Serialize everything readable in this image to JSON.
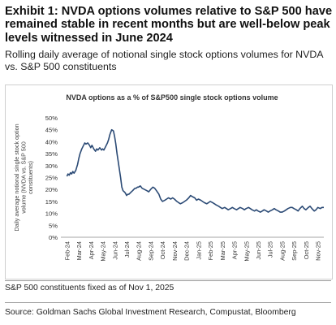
{
  "header": {
    "title": "Exhibit 1: NVDA options volumes relative to S&P 500 have remained stable in recent months but are well-below peak levels witnessed in June 2024",
    "subtitle": "Rolling daily average of notional single stock options volumes for NVDA vs. S&P 500 constituents"
  },
  "chart_data": {
    "type": "line",
    "title": "NVDA options as a % of S&P500 single stock options volume",
    "ylabel": "Daily average notional single stock option volume (NVDA vs. S&P 500 constituents)",
    "ylim": [
      0,
      50
    ],
    "y_ticks": [
      "0%",
      "5%",
      "10%",
      "15%",
      "20%",
      "25%",
      "30%",
      "35%",
      "40%",
      "45%",
      "50%"
    ],
    "x_ticks": [
      "Feb-24",
      "Mar-24",
      "Apr-24",
      "May-24",
      "Jun-24",
      "Jul-24",
      "Aug-24",
      "Sep-24",
      "Oct-24",
      "Nov-24",
      "Dec-24",
      "Jan-25",
      "Feb-25",
      "Mar-25",
      "Apr-25",
      "May-25",
      "Jun-25",
      "Jul-25",
      "Aug-25",
      "Sep-25",
      "Oct-25",
      "Nov-25"
    ],
    "grid": false,
    "line_color": "#2b4a75",
    "x": [
      0,
      0.1,
      0.2,
      0.3,
      0.4,
      0.5,
      0.6,
      0.75,
      0.9,
      1.0,
      1.1,
      1.25,
      1.4,
      1.5,
      1.6,
      1.75,
      1.9,
      2.0,
      2.1,
      2.25,
      2.4,
      2.5,
      2.6,
      2.75,
      2.9,
      3.0,
      3.1,
      3.25,
      3.4,
      3.5,
      3.6,
      3.75,
      3.9,
      4.0,
      4.1,
      4.2,
      4.35,
      4.5,
      4.6,
      4.7,
      4.8,
      4.9,
      5.0,
      5.1,
      5.2,
      5.3,
      5.4,
      5.5,
      5.6,
      5.7,
      5.8,
      5.9,
      6.0,
      6.15,
      6.3,
      6.5,
      6.7,
      6.85,
      7.0,
      7.2,
      7.35,
      7.5,
      7.7,
      7.85,
      8.0,
      8.2,
      8.35,
      8.5,
      8.7,
      8.85,
      9.0,
      9.2,
      9.35,
      9.5,
      9.7,
      9.85,
      10.0,
      10.2,
      10.35,
      10.5,
      10.7,
      10.85,
      11.0,
      11.2,
      11.35,
      11.5,
      11.7,
      11.85,
      12.0,
      12.2,
      12.35,
      12.5,
      12.7,
      12.85,
      13.0,
      13.2,
      13.35,
      13.5,
      13.7,
      13.85,
      14.0,
      14.2,
      14.35,
      14.5,
      14.7,
      14.85,
      15.0,
      15.2,
      15.35,
      15.5,
      15.7,
      15.85,
      16.0,
      16.2,
      16.35,
      16.5,
      16.7,
      16.85,
      17.0,
      17.2,
      17.35,
      17.5,
      17.7,
      17.85,
      18.0,
      18.2,
      18.35,
      18.5,
      18.7,
      18.85,
      19.0,
      19.2,
      19.35,
      19.5,
      19.7,
      19.85,
      20.0,
      20.2,
      20.35,
      20.5,
      20.7,
      20.85,
      21.0,
      21.2,
      21.35,
      21.5
    ],
    "values": [
      25.5,
      26.5,
      26.0,
      27.0,
      26.5,
      27.5,
      26.8,
      28.0,
      30.5,
      33.0,
      35.0,
      37.0,
      38.5,
      39.5,
      39.0,
      39.5,
      38.5,
      37.5,
      38.5,
      37.0,
      36.0,
      37.0,
      36.5,
      37.5,
      36.5,
      37.0,
      36.5,
      38.0,
      39.5,
      41.0,
      43.0,
      45.0,
      44.5,
      42.0,
      39.0,
      35.0,
      30.0,
      25.0,
      21.0,
      19.5,
      19.0,
      18.5,
      17.5,
      18.0,
      18.0,
      18.5,
      19.0,
      19.5,
      20.0,
      20.5,
      20.5,
      21.0,
      21.0,
      21.5,
      20.5,
      20.0,
      19.5,
      19.0,
      20.0,
      21.0,
      20.5,
      19.5,
      18.0,
      16.0,
      15.0,
      15.5,
      16.0,
      16.5,
      16.0,
      16.5,
      16.0,
      15.0,
      14.5,
      14.0,
      14.5,
      15.0,
      15.5,
      16.5,
      17.5,
      17.0,
      16.5,
      15.5,
      16.0,
      15.5,
      15.0,
      14.5,
      14.0,
      14.5,
      15.0,
      14.5,
      14.0,
      13.5,
      13.0,
      12.5,
      12.0,
      12.5,
      12.0,
      11.5,
      12.0,
      12.5,
      12.0,
      11.5,
      12.0,
      12.5,
      12.0,
      11.5,
      12.0,
      12.5,
      12.0,
      11.5,
      11.0,
      11.5,
      11.0,
      10.5,
      11.0,
      11.5,
      11.0,
      10.5,
      11.0,
      11.5,
      12.0,
      11.5,
      11.0,
      10.5,
      10.5,
      11.0,
      11.5,
      12.0,
      12.5,
      12.5,
      12.0,
      11.5,
      11.0,
      12.0,
      13.0,
      12.0,
      11.5,
      12.5,
      13.0,
      12.0,
      11.0,
      11.5,
      12.5,
      12.0,
      12.5,
      12.5
    ]
  },
  "footer": {
    "footnote": "S&P 500 constituents fixed as of Nov 1, 2025",
    "source": "Source: Goldman Sachs Global Investment Research, Compustat, Bloomberg"
  }
}
